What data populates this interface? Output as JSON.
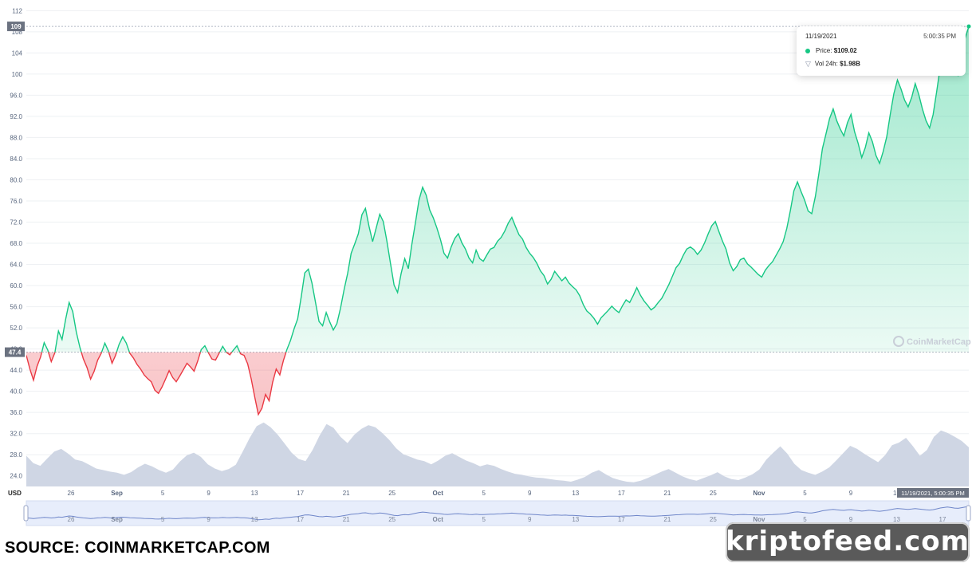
{
  "chart_data": {
    "type": "line",
    "y_ticks": [
      "112",
      "108",
      "104",
      "100",
      "96.0",
      "92.0",
      "88.0",
      "84.0",
      "80.0",
      "76.0",
      "72.0",
      "68.0",
      "64.0",
      "60.0",
      "56.0",
      "52.0",
      "48.0",
      "44.0",
      "40.0",
      "36.0",
      "32.0",
      "28.0",
      "24.0"
    ],
    "ylim": [
      22,
      112.5
    ],
    "x_ticks": [
      "26",
      "Sep",
      "5",
      "9",
      "13",
      "17",
      "21",
      "25",
      "Oct",
      "5",
      "9",
      "13",
      "17",
      "21",
      "25",
      "Nov",
      "5",
      "9",
      "13",
      "17"
    ],
    "y_unit_label": "USD",
    "reference_price": "47.4",
    "current_price_label": "109",
    "watermark": "CoinMarketCap",
    "navigator_ticks": [
      "26",
      "Sep",
      "5",
      "9",
      "13",
      "17",
      "21",
      "25",
      "Oct",
      "5",
      "9",
      "13",
      "17",
      "21",
      "25",
      "Nov",
      "5",
      "9",
      "13",
      "17"
    ],
    "crosshair_label": "11/19/2021, 5:00:35 PM",
    "series": [
      {
        "values": [
          46.8,
          44.2,
          42.1,
          44.7,
          46.5,
          49.2,
          47.8,
          45.6,
          47.3,
          51.4,
          49.8,
          53.6,
          56.8,
          55.1,
          51.2,
          48.3,
          46.1,
          44.5,
          42.3,
          43.8,
          45.9,
          47.2,
          49.1,
          47.6,
          45.3,
          46.8,
          48.9,
          50.3,
          49.1,
          47.2,
          46.3,
          45.1,
          44.2,
          43.1,
          42.4,
          41.8,
          40.2,
          39.6,
          40.8,
          42.3,
          43.9,
          42.6,
          41.8,
          42.9,
          44.1,
          45.3,
          44.6,
          43.8,
          45.7,
          47.9,
          48.6,
          47.3,
          46.1,
          45.9,
          47.2,
          48.5,
          47.4,
          46.9,
          47.8,
          48.6,
          47.1,
          46.8,
          45.2,
          42.3,
          38.9,
          35.6,
          36.8,
          39.4,
          38.2,
          41.7,
          44.2,
          43.1,
          45.8,
          47.9,
          49.6,
          51.8,
          53.7,
          57.9,
          62.4,
          63.1,
          60.5,
          56.8,
          53.2,
          52.4,
          54.9,
          53.1,
          51.6,
          52.8,
          55.7,
          59.2,
          62.3,
          66.1,
          67.9,
          69.8,
          73.4,
          74.6,
          71.2,
          68.3,
          70.9,
          73.5,
          72.1,
          68.4,
          64.2,
          60.1,
          58.7,
          62.3,
          65.1,
          63.2,
          67.8,
          71.9,
          76.2,
          78.6,
          77.1,
          74.3,
          72.8,
          70.9,
          68.7,
          66.1,
          65.2,
          67.3,
          68.9,
          69.8,
          68.1,
          66.9,
          65.2,
          64.3,
          66.7,
          65.1,
          64.6,
          65.8,
          66.9,
          67.2,
          68.4,
          69.1,
          70.3,
          71.8,
          72.9,
          71.2,
          69.6,
          68.8,
          67.2,
          66.1,
          65.3,
          64.2,
          62.8,
          61.9,
          60.3,
          61.2,
          62.7,
          61.8,
          60.9,
          61.6,
          60.5,
          59.8,
          59.2,
          58.1,
          56.4,
          55.2,
          54.6,
          53.8,
          52.7,
          53.9,
          54.6,
          55.3,
          56.1,
          55.4,
          54.9,
          56.2,
          57.3,
          56.8,
          58.1,
          59.6,
          58.2,
          57.1,
          56.3,
          55.4,
          55.9,
          56.8,
          57.6,
          58.9,
          60.2,
          61.8,
          63.4,
          64.2,
          65.7,
          66.9,
          67.3,
          66.8,
          65.9,
          66.7,
          68.1,
          69.8,
          71.3,
          72.1,
          70.2,
          68.4,
          66.9,
          64.3,
          62.8,
          63.6,
          64.9,
          65.2,
          64.1,
          63.5,
          62.8,
          62.1,
          61.6,
          62.9,
          63.8,
          64.5,
          65.7,
          66.9,
          68.3,
          70.8,
          74.1,
          77.9,
          79.6,
          77.8,
          76.2,
          74.1,
          73.6,
          76.8,
          81.2,
          85.9,
          88.7,
          91.6,
          93.4,
          91.2,
          89.6,
          88.3,
          90.8,
          92.4,
          89.1,
          86.9,
          84.2,
          86.1,
          88.9,
          87.2,
          84.6,
          83.1,
          85.3,
          88.1,
          92.4,
          96.3,
          98.9,
          97.2,
          95.1,
          93.8,
          95.6,
          98.2,
          96.1,
          93.4,
          91.2,
          89.8,
          92.3,
          96.7,
          101.4,
          104.2,
          106.9,
          104.1,
          101.3,
          99.8,
          103.2,
          106.8,
          109.02
        ]
      }
    ],
    "volume_values": [
      27.8,
      26.4,
      25.9,
      27.3,
      28.6,
      29.1,
      28.2,
      27.1,
      26.8,
      26.1,
      25.4,
      25.1,
      24.8,
      24.6,
      24.2,
      24.7,
      25.6,
      26.3,
      25.8,
      25.1,
      24.6,
      25.2,
      26.7,
      27.9,
      28.4,
      27.6,
      26.2,
      25.4,
      24.9,
      25.3,
      26.1,
      28.6,
      31.2,
      33.4,
      34.1,
      33.2,
      31.8,
      30.1,
      28.4,
      27.2,
      26.8,
      28.9,
      31.6,
      33.8,
      33.1,
      31.4,
      30.2,
      31.8,
      32.9,
      33.6,
      33.2,
      32.1,
      30.8,
      29.2,
      28.1,
      27.6,
      27.1,
      26.8,
      26.2,
      26.9,
      27.8,
      28.3,
      27.6,
      26.9,
      26.4,
      25.8,
      26.2,
      25.9,
      25.3,
      24.8,
      24.4,
      24.2,
      23.9,
      23.7,
      23.6,
      23.4,
      23.2,
      23.1,
      22.9,
      23.3,
      23.8,
      24.6,
      25.1,
      24.3,
      23.6,
      23.2,
      22.9,
      22.8,
      23.1,
      23.6,
      24.2,
      24.8,
      25.3,
      24.6,
      23.9,
      23.4,
      23.1,
      23.6,
      24.1,
      24.7,
      23.9,
      23.4,
      23.2,
      23.7,
      24.3,
      25.2,
      27.1,
      28.4,
      29.6,
      28.2,
      26.3,
      25.1,
      24.6,
      24.2,
      24.8,
      25.6,
      26.9,
      28.3,
      29.7,
      29.1,
      28.2,
      27.4,
      26.6,
      27.9,
      29.8,
      30.3,
      31.2,
      29.6,
      27.8,
      28.9,
      31.4,
      32.6,
      32.1,
      31.4,
      30.6,
      29.4
    ],
    "watermark_visible": true
  },
  "tooltip": {
    "date": "11/19/2021",
    "time": "5:00:35 PM",
    "price_label": "Price:",
    "price_value": "$109.02",
    "vol_label": "Vol 24h:",
    "vol_value": "$1.98B"
  },
  "colors": {
    "up": "#16c784",
    "down": "#ea3943",
    "volume": "#cfd6e4",
    "navigator_fill": "#e7edfb",
    "navigator_line": "#6f86c9",
    "grid": "#eef0f3",
    "label_bg": "#6b7280"
  },
  "footer": {
    "source_text": "SOURCE: COINMARKETCAP.COM",
    "watermark_site": "kriptofeed.com"
  }
}
